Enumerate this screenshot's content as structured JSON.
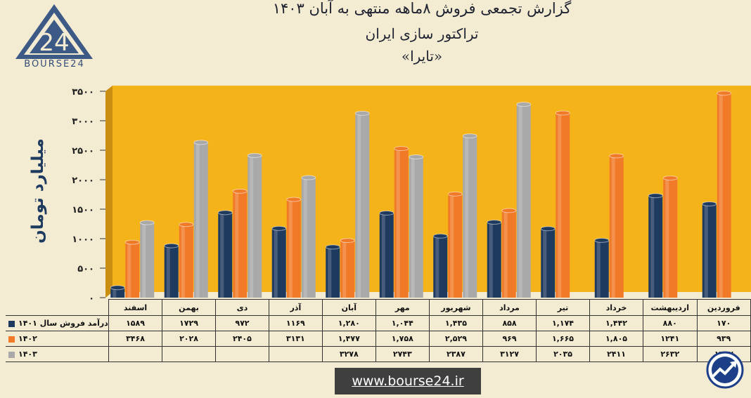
{
  "brand": {
    "name": "BOURSE24",
    "logo_mark": "24"
  },
  "header": {
    "title_line1": "گزارش تجمعی فروش  ۸ماهه منتهی به آبان ۱۴۰۳",
    "title_line2": "تراکتور سازی ایران",
    "title_line3": "«تایرا»"
  },
  "footer": {
    "url": "www.bourse24.ir",
    "trend_icon": "trend-up-icon"
  },
  "colors": {
    "plot_bg": "#f5b31a",
    "s1401": "#1f3a5f",
    "s1402": "#f07a28",
    "s1403": "#a9a9a9"
  },
  "chart_data": {
    "type": "bar",
    "ylabel": "میلیارد تومان",
    "ylim": [
      0,
      3500
    ],
    "yticks": [
      0,
      500,
      1000,
      1500,
      2000,
      2500,
      3000,
      3500
    ],
    "ytick_labels": [
      "۰",
      "۵۰۰",
      "۱۰۰۰",
      "۱۵۰۰",
      "۲۰۰۰",
      "۲۵۰۰",
      "۳۰۰۰",
      "۳۵۰۰"
    ],
    "categories": [
      "اسفند",
      "بهمن",
      "دی",
      "آذر",
      "آبان",
      "مهر",
      "شهریور",
      "مرداد",
      "تیر",
      "خرداد",
      "اردیبهشت",
      "فروردین"
    ],
    "series": [
      {
        "name": "درآمد فروش سال ۱۴۰۱",
        "values": [
          1589,
          1729,
          972,
          1169,
          1280,
          1044,
          1435,
          858,
          1174,
          1442,
          880,
          170
        ],
        "labels": [
          "۱۵۸۹",
          "۱۷۲۹",
          "۹۷۲",
          "۱۱۶۹",
          "۱,۲۸۰",
          "۱,۰۴۴",
          "۱,۴۳۵",
          "۸۵۸",
          "۱,۱۷۴",
          "۱,۴۴۲",
          "۸۸۰",
          "۱۷۰"
        ]
      },
      {
        "name": "۱۴۰۲",
        "values": [
          3468,
          2028,
          2405,
          3131,
          1477,
          1758,
          2529,
          969,
          1665,
          1805,
          1241,
          939
        ],
        "labels": [
          "۳۴۶۸",
          "۲۰۲۸",
          "۲۴۰۵",
          "۳۱۳۱",
          "۱,۴۷۷",
          "۱,۷۵۸",
          "۲,۵۲۹",
          "۹۶۹",
          "۱,۶۶۵",
          "۱,۸۰۵",
          "۱۲۴۱",
          "۹۳۹"
        ]
      },
      {
        "name": "۱۴۰۳",
        "values": [
          null,
          null,
          null,
          null,
          3278,
          2743,
          2387,
          3127,
          2035,
          2411,
          2632,
          1272
        ],
        "labels": [
          "",
          "",
          "",
          "",
          "۳۲۷۸",
          "۲۷۴۳",
          "۲۳۸۷",
          "۳۱۲۷",
          "۲۰۳۵",
          "۲۴۱۱",
          "۲۶۳۲",
          "۱۲۷۲"
        ]
      }
    ],
    "grid": false,
    "legend": "table-left"
  }
}
